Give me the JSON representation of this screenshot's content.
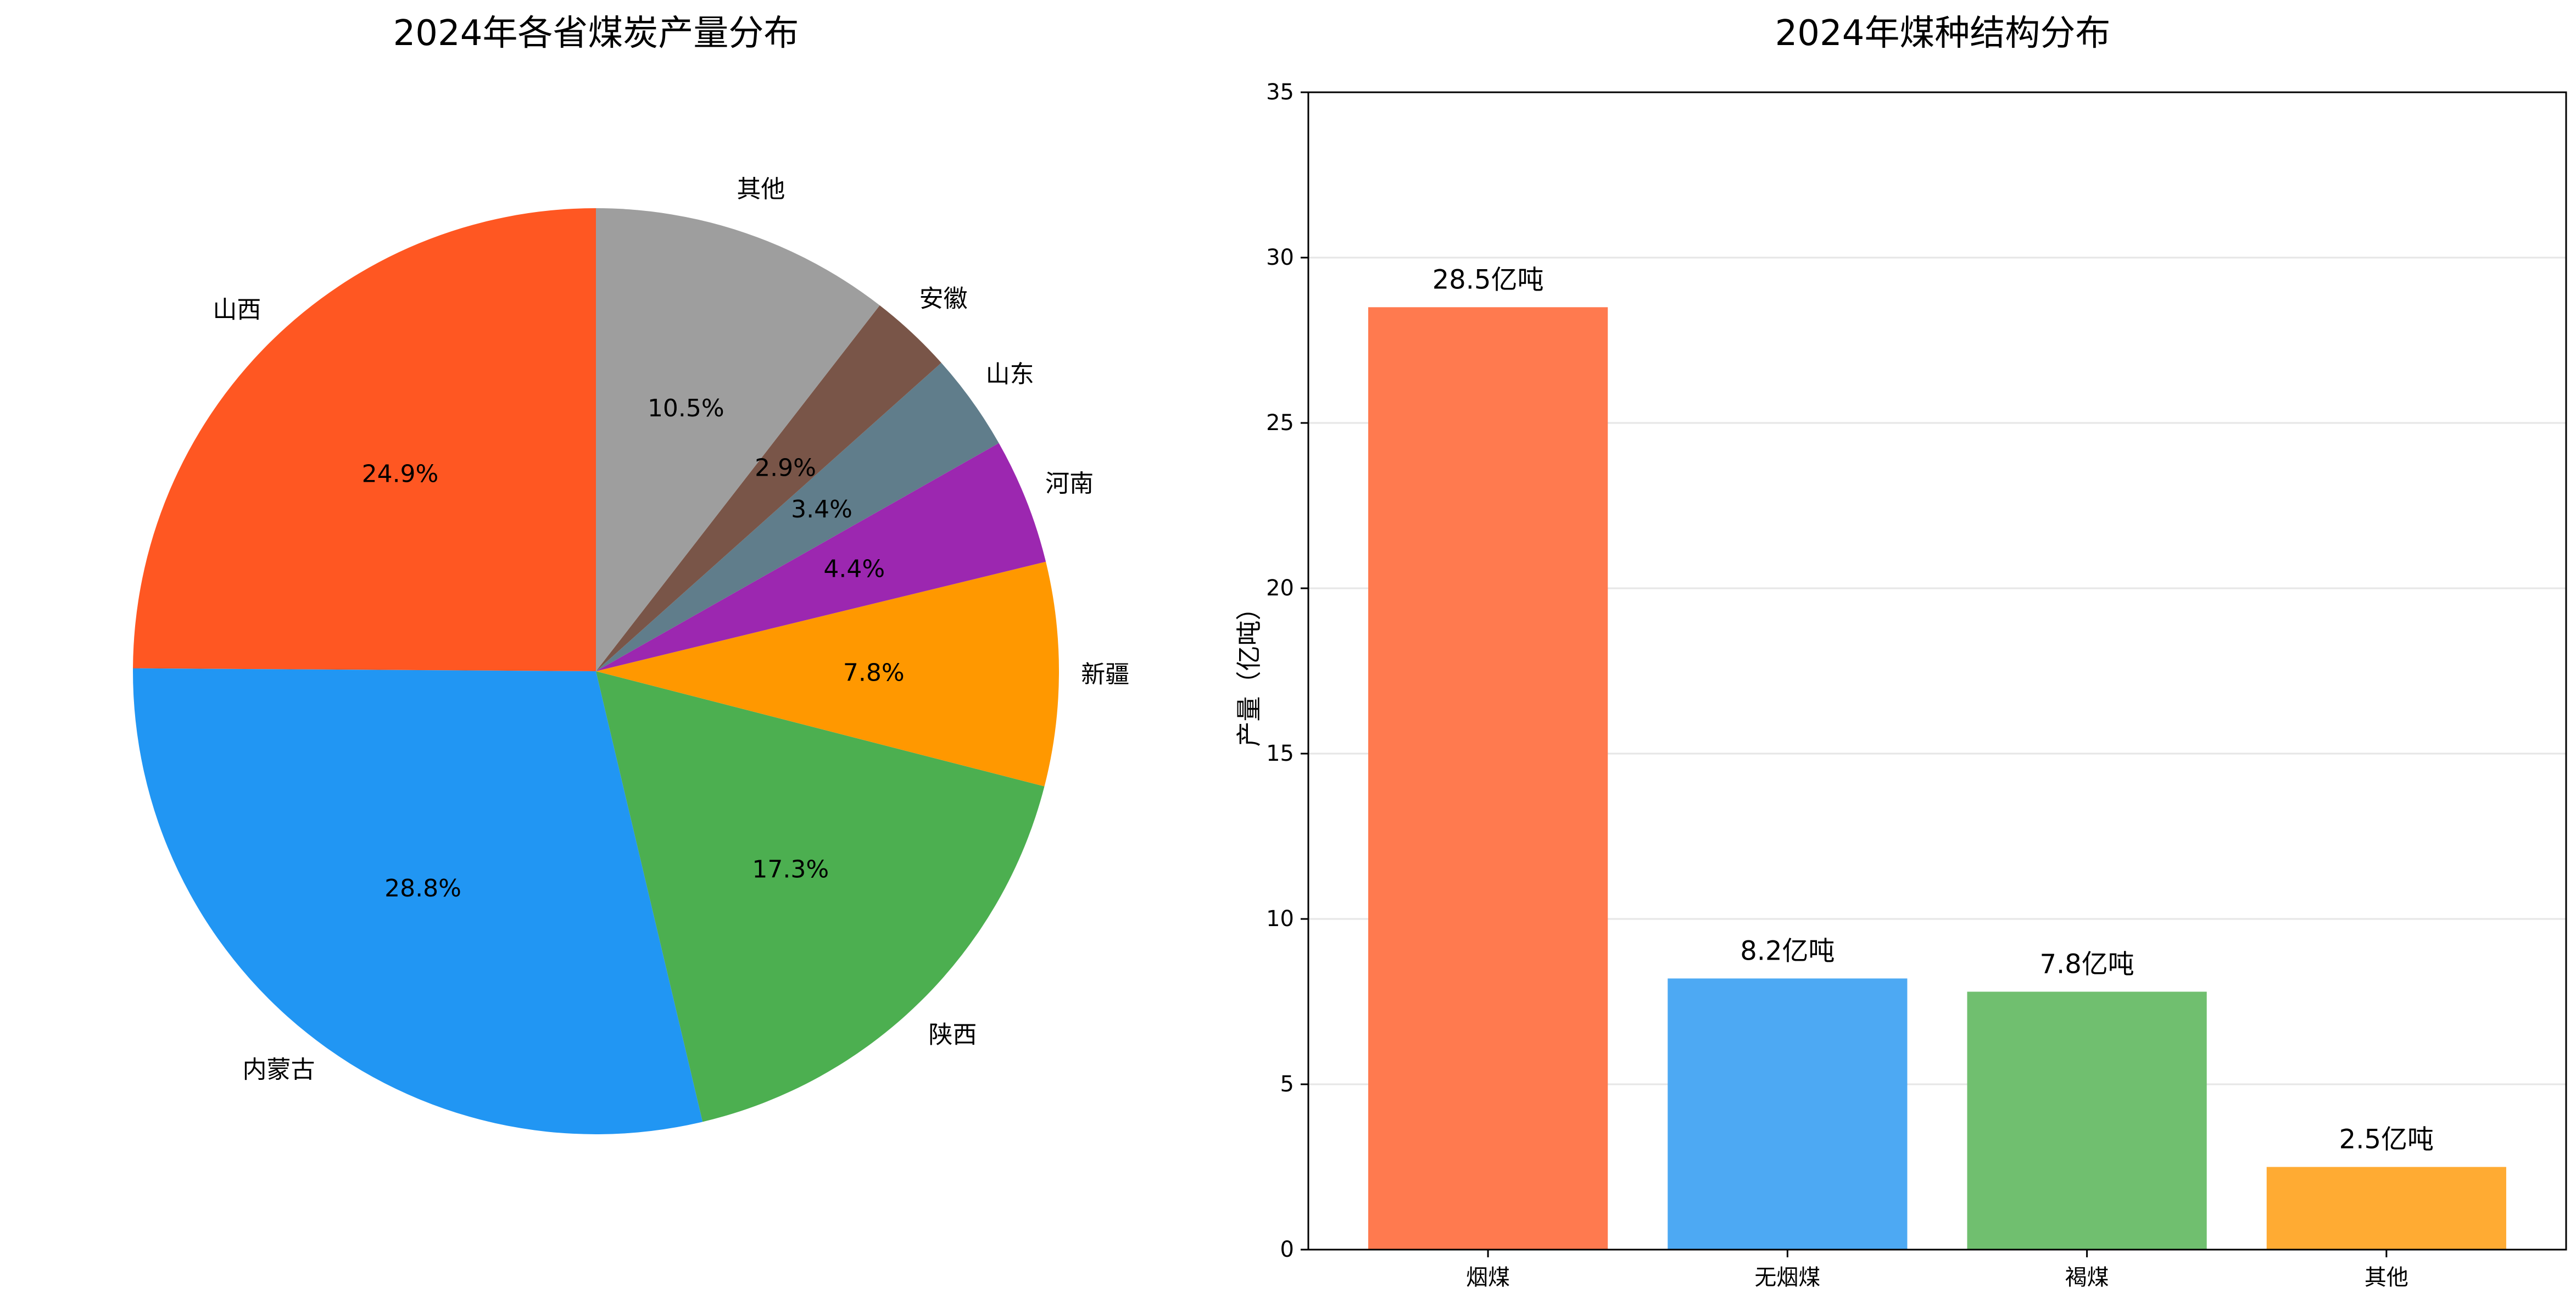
{
  "chart_data": [
    {
      "type": "pie",
      "title": "2024年各省煤炭产量分布",
      "slices": [
        {
          "label": "山西",
          "value": 24.9,
          "pct_label": "24.9%",
          "color": "#FF5722"
        },
        {
          "label": "内蒙古",
          "value": 28.8,
          "pct_label": "28.8%",
          "color": "#2196F3"
        },
        {
          "label": "陕西",
          "value": 17.3,
          "pct_label": "17.3%",
          "color": "#4CAF50"
        },
        {
          "label": "新疆",
          "value": 7.8,
          "pct_label": "7.8%",
          "color": "#FF9800"
        },
        {
          "label": "河南",
          "value": 4.4,
          "pct_label": "4.4%",
          "color": "#9C27B0"
        },
        {
          "label": "山东",
          "value": 3.4,
          "pct_label": "3.4%",
          "color": "#607D8B"
        },
        {
          "label": "安徽",
          "value": 2.9,
          "pct_label": "2.9%",
          "color": "#795548"
        },
        {
          "label": "其他",
          "value": 10.5,
          "pct_label": "10.5%",
          "color": "#9E9E9E"
        }
      ],
      "start_angle_deg": 90,
      "direction": "counterclockwise"
    },
    {
      "type": "bar",
      "title": "2024年煤种结构分布",
      "categories": [
        "烟煤",
        "无烟煤",
        "褐煤",
        "其他"
      ],
      "values": [
        28.5,
        8.2,
        7.8,
        2.5
      ],
      "value_labels": [
        "28.5亿吨",
        "8.2亿吨",
        "7.8亿吨",
        "2.5亿吨"
      ],
      "colors": [
        "#FF7A4F",
        "#4DA9F3",
        "#70BF6F",
        "#FFAB33"
      ],
      "ylabel": "产量（亿吨）",
      "ylim": [
        0,
        35
      ],
      "yticks": [
        0,
        5,
        10,
        15,
        20,
        25,
        30,
        35
      ],
      "grid": "y"
    }
  ]
}
